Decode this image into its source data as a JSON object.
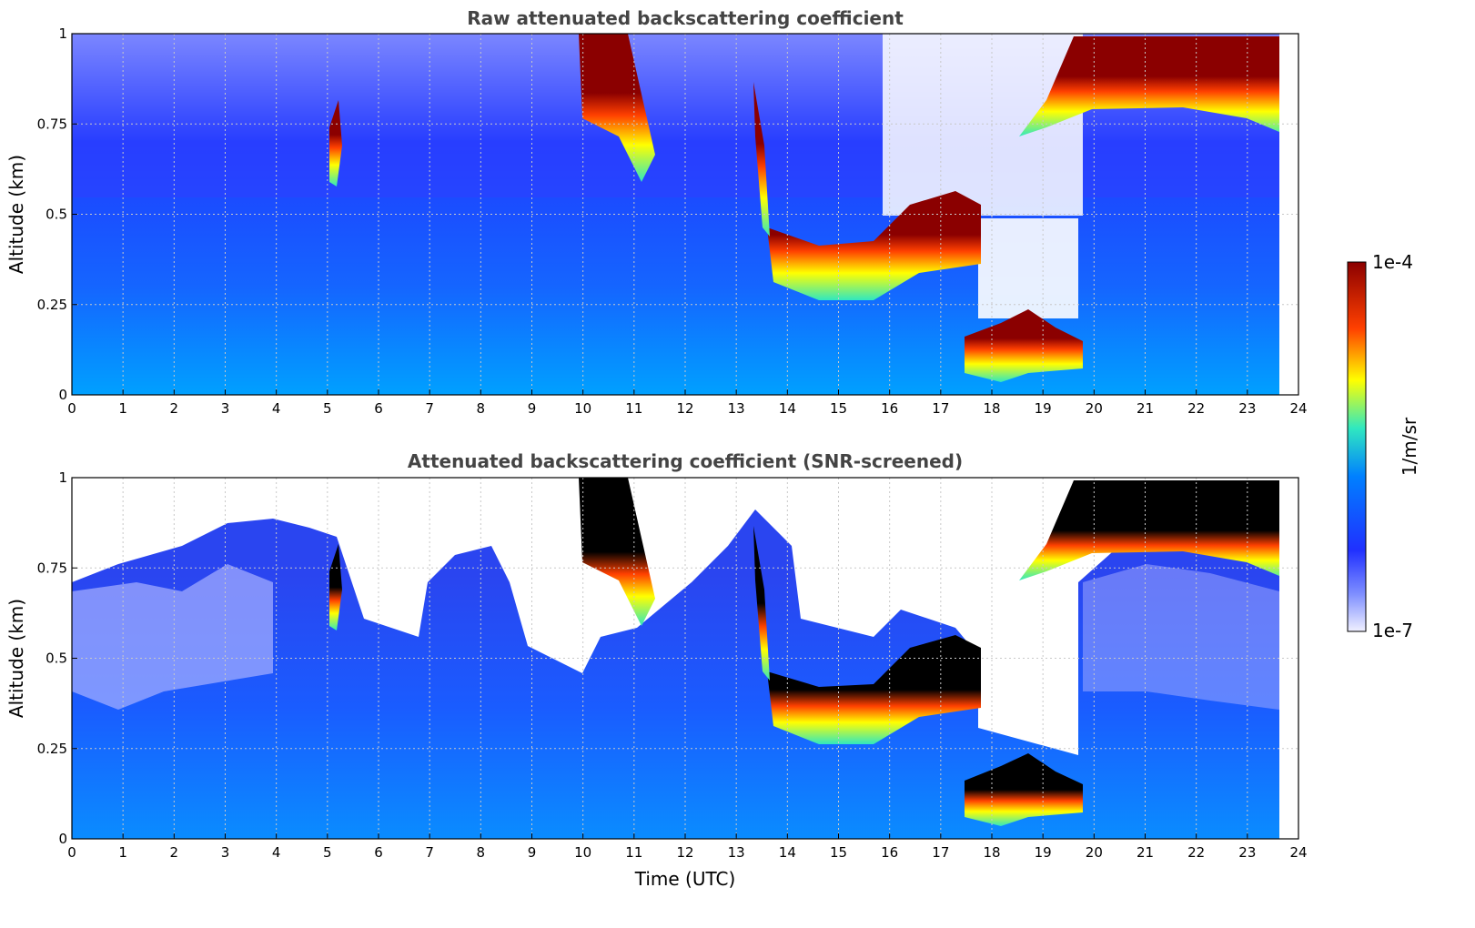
{
  "chart_data": [
    {
      "type": "heatmap",
      "title": "Raw attenuated backscattering coefficient",
      "xlabel": "",
      "ylabel": "Altitude (km)",
      "xlim": [
        0,
        24
      ],
      "ylim": [
        0,
        1
      ],
      "x_ticks": [
        "0",
        "1",
        "2",
        "3",
        "4",
        "5",
        "6",
        "7",
        "8",
        "9",
        "10",
        "11",
        "12",
        "13",
        "14",
        "15",
        "16",
        "17",
        "18",
        "19",
        "20",
        "21",
        "22",
        "23",
        "24"
      ],
      "y_ticks": [
        "0",
        "0.25",
        "0.5",
        "0.75",
        "1"
      ],
      "grid": true,
      "features": [
        {
          "name": "low cloud layer",
          "t_start": 13.6,
          "t_end": 17.9,
          "alt_bottom": 0.27,
          "alt_top": 0.45,
          "intensity": "high"
        },
        {
          "name": "near-surface layer",
          "t_start": 17.5,
          "t_end": 19.7,
          "alt_bottom": 0.04,
          "alt_top": 0.2,
          "intensity": "high"
        },
        {
          "name": "upper cloud layer",
          "t_start": 19.4,
          "t_end": 23.6,
          "alt_bottom": 0.73,
          "alt_top": 0.98,
          "intensity": "high"
        },
        {
          "name": "morning fall streaks",
          "t_start": 10.0,
          "t_end": 11.4,
          "alt_bottom": 0.6,
          "alt_top": 1.0,
          "intensity": "high"
        }
      ]
    },
    {
      "type": "heatmap",
      "title": "Attenuated backscattering coefficient (SNR-screened)",
      "xlabel": "Time (UTC)",
      "ylabel": "Altitude (km)",
      "xlim": [
        0,
        24
      ],
      "ylim": [
        0,
        1
      ],
      "x_ticks": [
        "0",
        "1",
        "2",
        "3",
        "4",
        "5",
        "6",
        "7",
        "8",
        "9",
        "10",
        "11",
        "12",
        "13",
        "14",
        "15",
        "16",
        "17",
        "18",
        "19",
        "20",
        "21",
        "22",
        "23",
        "24"
      ],
      "y_ticks": [
        "0",
        "0.25",
        "0.5",
        "0.75",
        "1"
      ],
      "grid": true,
      "features": [
        {
          "name": "low cloud layer (saturated)",
          "t_start": 13.6,
          "t_end": 17.9,
          "alt_bottom": 0.27,
          "alt_top": 0.45,
          "intensity": "saturated"
        },
        {
          "name": "near-surface layer (saturated)",
          "t_start": 17.5,
          "t_end": 19.7,
          "alt_bottom": 0.04,
          "alt_top": 0.2,
          "intensity": "saturated"
        },
        {
          "name": "upper cloud layer (saturated)",
          "t_start": 19.4,
          "t_end": 23.6,
          "alt_bottom": 0.73,
          "alt_top": 0.98,
          "intensity": "saturated"
        }
      ]
    }
  ],
  "colorbar": {
    "max_label": "1e-4",
    "min_label": "1e-7",
    "unit_label": "1/m/sr",
    "scale": "log",
    "colors": [
      "#f0f0ff",
      "#2030ff",
      "#00a0ff",
      "#30e8c0",
      "#ffff00",
      "#ff4000",
      "#8b0000"
    ]
  }
}
